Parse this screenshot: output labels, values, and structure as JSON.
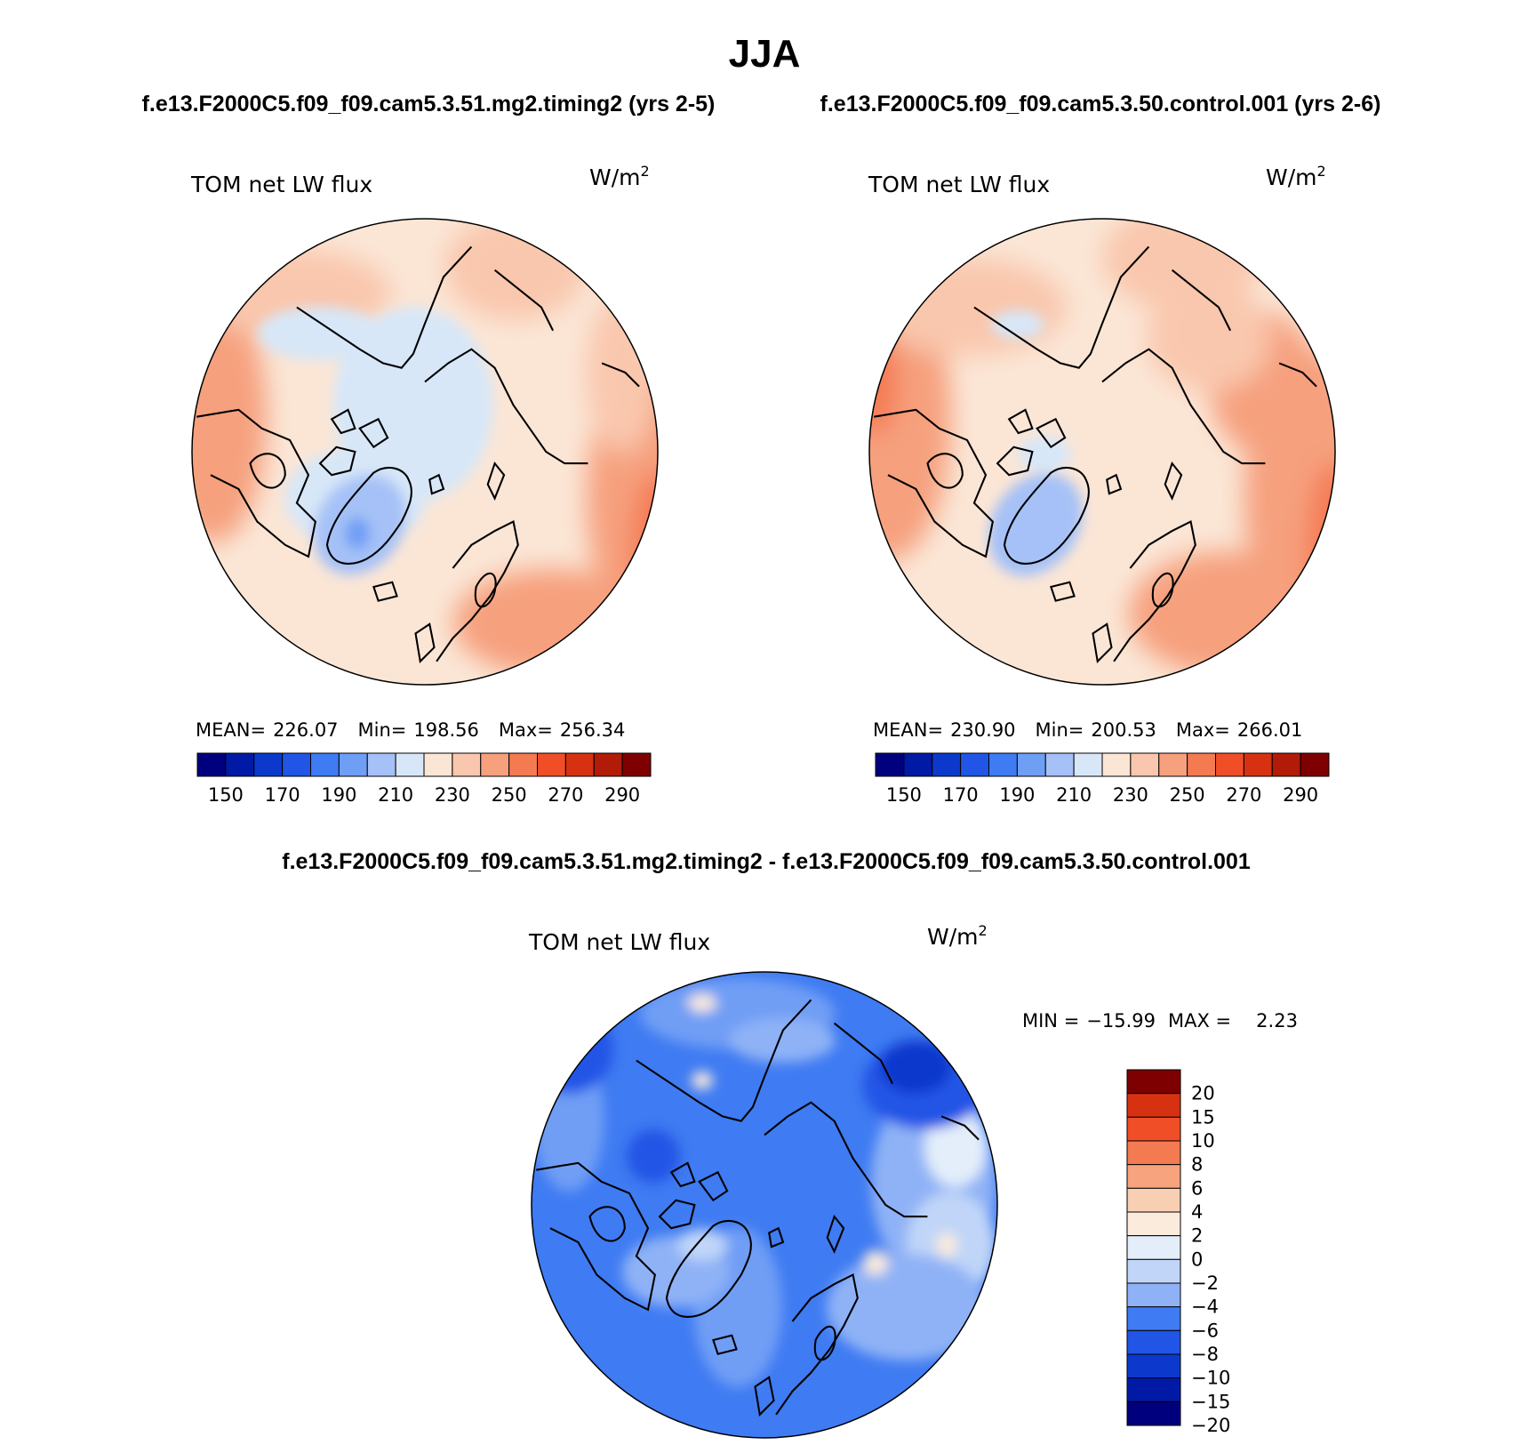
{
  "page": {
    "title": "JJA",
    "top_left_case": "f.e13.F2000C5.f09_f09.cam5.3.51.mg2.timing2 (yrs 2-5)",
    "top_right_case": "f.e13.F2000C5.f09_f09.cam5.3.50.control.001 (yrs 2-6)",
    "diff_case": "f.e13.F2000C5.f09_f09.cam5.3.51.mg2.timing2 - f.e13.F2000C5.f09_f09.cam5.3.50.control.001"
  },
  "colors": {
    "abs_scale": [
      "#00007f",
      "#001aa6",
      "#0c39cc",
      "#2155e6",
      "#3f7bf2",
      "#6f9ef5",
      "#a5c1f7",
      "#d7e7f8",
      "#fbe6d6",
      "#f9c7ad",
      "#f6a07e",
      "#f47a52",
      "#ef4e26",
      "#d63212",
      "#b11b08",
      "#7f0000"
    ],
    "diff_scale": [
      "#00007f",
      "#001aa6",
      "#0c39cc",
      "#2155e6",
      "#3f7bf2",
      "#8fb2f6",
      "#c0d5f8",
      "#e3eefa",
      "#fbebdc",
      "#f9cfb3",
      "#f6a37e",
      "#f47a52",
      "#ef4e26",
      "#d63212",
      "#7f0000"
    ],
    "coast": "#000000"
  },
  "chart_data": [
    {
      "type": "heatmap",
      "panel": "top-left",
      "title": "TOM net LW flux",
      "units": "W/m",
      "units_superscript": "2",
      "stats": {
        "mean_label": "MEAN=",
        "mean": "226.07",
        "min_label": "Min=",
        "min": "198.56",
        "max_label": "Max=",
        "max": "256.34"
      },
      "colorbar_orientation": "horizontal",
      "colorbar_tick_labels": [
        "150",
        "170",
        "190",
        "210",
        "230",
        "250",
        "270",
        "290"
      ],
      "contour_levels": [
        150,
        160,
        170,
        180,
        190,
        200,
        210,
        220,
        230,
        240,
        250,
        260,
        270,
        280,
        290
      ],
      "dominant_range": [
        200,
        260
      ]
    },
    {
      "type": "heatmap",
      "panel": "top-right",
      "title": "TOM net LW flux",
      "units": "W/m",
      "units_superscript": "2",
      "stats": {
        "mean_label": "MEAN=",
        "mean": "230.90",
        "min_label": "Min=",
        "min": "200.53",
        "max_label": "Max=",
        "max": "266.01"
      },
      "colorbar_orientation": "horizontal",
      "colorbar_tick_labels": [
        "150",
        "170",
        "190",
        "210",
        "230",
        "250",
        "270",
        "290"
      ],
      "contour_levels": [
        150,
        160,
        170,
        180,
        190,
        200,
        210,
        220,
        230,
        240,
        250,
        260,
        270,
        280,
        290
      ],
      "dominant_range": [
        200,
        270
      ]
    },
    {
      "type": "heatmap",
      "panel": "bottom",
      "title": "TOM net LW flux",
      "units": "W/m",
      "units_superscript": "2",
      "stats_text": {
        "min_label": "MIN =",
        "min": "−15.99",
        "max_label": "MAX =",
        "max": "2.23"
      },
      "colorbar_orientation": "vertical",
      "colorbar_tick_labels": [
        "20",
        "15",
        "10",
        "8",
        "6",
        "4",
        "2",
        "0",
        "−2",
        "−4",
        "−6",
        "−8",
        "−10",
        "−15",
        "−20"
      ],
      "contour_levels": [
        -20,
        -15,
        -10,
        -8,
        -6,
        -4,
        -2,
        0,
        2,
        4,
        6,
        8,
        10,
        15,
        20
      ],
      "dominant_range": [
        -16,
        2
      ]
    }
  ]
}
